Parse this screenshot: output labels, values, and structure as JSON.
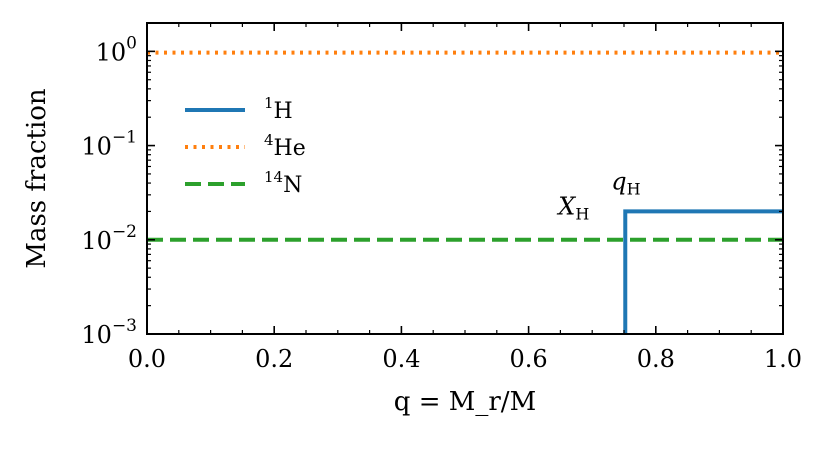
{
  "chart_data": {
    "type": "line",
    "title": "",
    "xlabel": "q = M_r/M",
    "ylabel": "Mass fraction",
    "xscale": "linear",
    "yscale": "log",
    "xlim": [
      0.0,
      1.0
    ],
    "ylim": [
      0.001,
      2.0
    ],
    "grid": false,
    "legend_position": "upper-left",
    "x_tick_labels": [
      "0.0",
      "0.2",
      "0.4",
      "0.6",
      "0.8",
      "1.0"
    ],
    "x_ticks": [
      0.0,
      0.2,
      0.4,
      0.6,
      0.8,
      1.0
    ],
    "y_ticks": [
      0.001,
      0.01,
      0.1,
      1
    ],
    "y_tick_labels": [
      {
        "base": "10",
        "exp": "−3"
      },
      {
        "base": "10",
        "exp": "−2"
      },
      {
        "base": "10",
        "exp": "−1"
      },
      {
        "base": "10",
        "exp": "0"
      }
    ],
    "series": [
      {
        "name": "¹H",
        "legend": {
          "sup": "1",
          "main": "H"
        },
        "color": "#1f77b4",
        "style": "solid",
        "x": [
          0.752,
          0.752,
          1.0
        ],
        "y": [
          0.001,
          0.02,
          0.02
        ]
      },
      {
        "name": "⁴He",
        "legend": {
          "sup": "4",
          "main": "He"
        },
        "color": "#ff7f0e",
        "style": "dotted",
        "x": [
          0.0,
          1.0
        ],
        "y": [
          0.97,
          0.97
        ]
      },
      {
        "name": "¹⁴N",
        "legend": {
          "sup": "14",
          "main": "N"
        },
        "color": "#2ca02c",
        "style": "dashed",
        "x": [
          0.0,
          1.0
        ],
        "y": [
          0.01,
          0.01
        ]
      }
    ],
    "annotations": [
      {
        "id": "X_H",
        "main": "X",
        "sub": "H",
        "x": 0.752,
        "y": 0.02
      },
      {
        "id": "q_H",
        "main": "q",
        "sub": "H",
        "x": 0.752,
        "y": 0.02
      }
    ]
  }
}
